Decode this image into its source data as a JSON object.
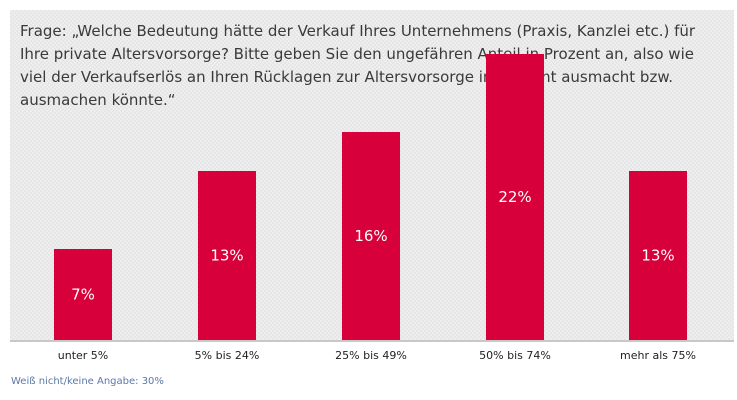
{
  "question": "Frage: „Welche Bedeutung hätte der Verkauf Ihres Unternehmens (Praxis, Kanzlei etc.) für Ihre private Altersvorsorge? Bitte geben Sie den ungefähren Anteil in Prozent an, also wie viel der Verkaufserlös an Ihren Rücklagen zur Altersvorsorge insgesamt ausmacht bzw. ausmachen könnte.“",
  "footnote": "Weiß nicht/keine Angabe: 30%",
  "colors": {
    "bar": "#d8003a",
    "panel": "#eeeeee",
    "footnote": "#5b79a8"
  },
  "chart_data": {
    "type": "bar",
    "categories": [
      "unter 5%",
      "5% bis 24%",
      "25% bis 49%",
      "50% bis 74%",
      "mehr als 75%"
    ],
    "values": [
      7,
      13,
      16,
      22,
      13
    ],
    "value_labels": [
      "7%",
      "13%",
      "16%",
      "22%",
      "13%"
    ],
    "unit": "%",
    "title": "",
    "xlabel": "",
    "ylabel": "",
    "grid": false,
    "legend": "none"
  }
}
